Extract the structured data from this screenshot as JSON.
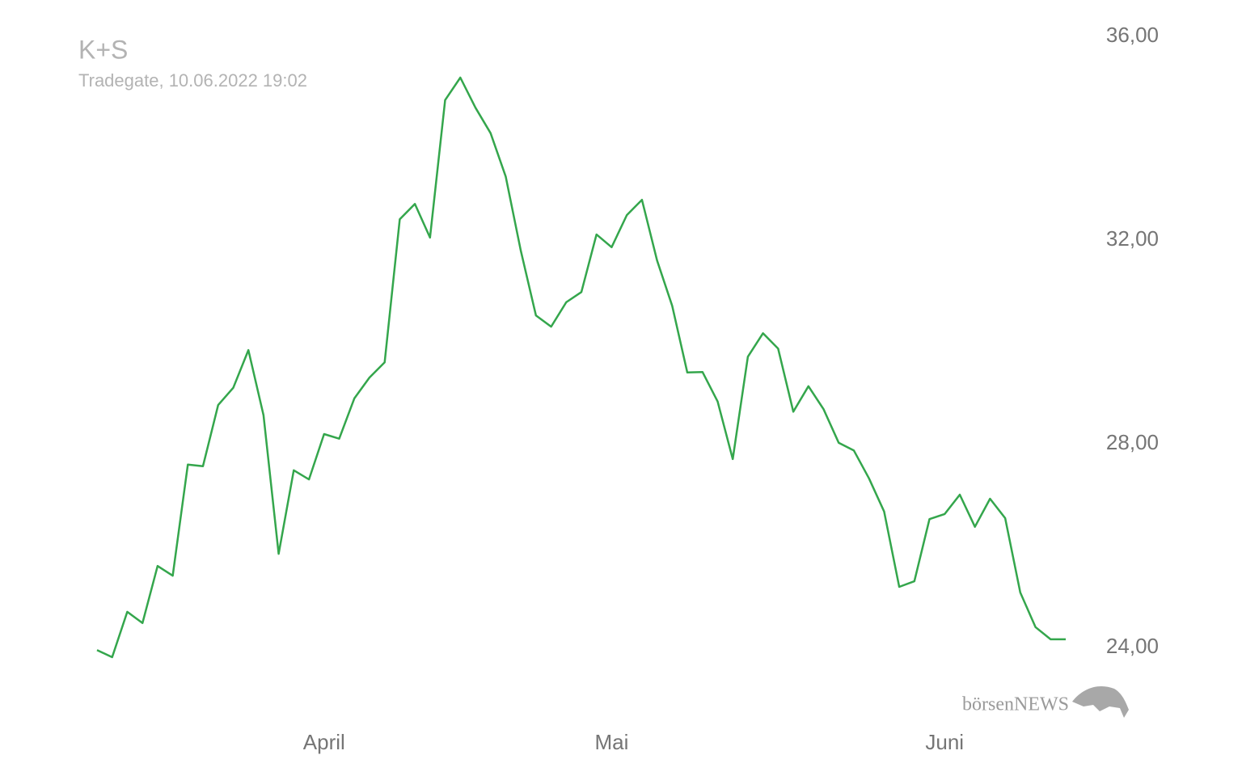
{
  "chart_data": {
    "type": "line",
    "title": "K+S",
    "subtitle": "Tradegate, 10.06.2022 19:02",
    "watermark": "börsenNEWS",
    "categories": [
      null,
      null,
      null,
      null,
      null,
      null,
      null,
      null,
      null,
      null,
      null,
      null,
      null,
      null,
      null,
      "April",
      null,
      null,
      null,
      null,
      null,
      null,
      null,
      null,
      null,
      null,
      null,
      null,
      null,
      null,
      null,
      null,
      null,
      null,
      "Mai",
      null,
      null,
      null,
      null,
      null,
      null,
      null,
      null,
      null,
      null,
      null,
      null,
      null,
      null,
      null,
      null,
      null,
      null,
      null,
      null,
      null,
      "Juni",
      null,
      null,
      null,
      null,
      null,
      null,
      null,
      null
    ],
    "series": [
      {
        "color": "#34a64c",
        "values": [
          23.95,
          23.81,
          24.7,
          24.48,
          25.6,
          25.41,
          27.59,
          27.56,
          28.76,
          29.1,
          29.84,
          28.56,
          25.84,
          27.48,
          27.3,
          28.19,
          28.1,
          28.89,
          29.3,
          29.6,
          32.41,
          32.71,
          32.05,
          34.75,
          35.19,
          34.6,
          34.1,
          33.25,
          31.79,
          30.52,
          30.3,
          30.78,
          30.98,
          32.11,
          31.86,
          32.49,
          32.79,
          31.6,
          30.71,
          29.4,
          29.41,
          28.83,
          27.7,
          29.71,
          30.17,
          29.87,
          28.63,
          29.13,
          28.68,
          28.02,
          27.87,
          27.32,
          26.67,
          25.19,
          25.3,
          26.52,
          26.62,
          27.0,
          26.37,
          26.92,
          26.54,
          25.08,
          24.4,
          24.16,
          24.16
        ]
      }
    ],
    "ylim": [
      23,
      36
    ],
    "yticks": [
      {
        "value": 24,
        "label": "24,00"
      },
      {
        "value": 28,
        "label": "28,00"
      },
      {
        "value": 32,
        "label": "32,00"
      },
      {
        "value": 36,
        "label": "36,00"
      }
    ],
    "grid": false
  }
}
